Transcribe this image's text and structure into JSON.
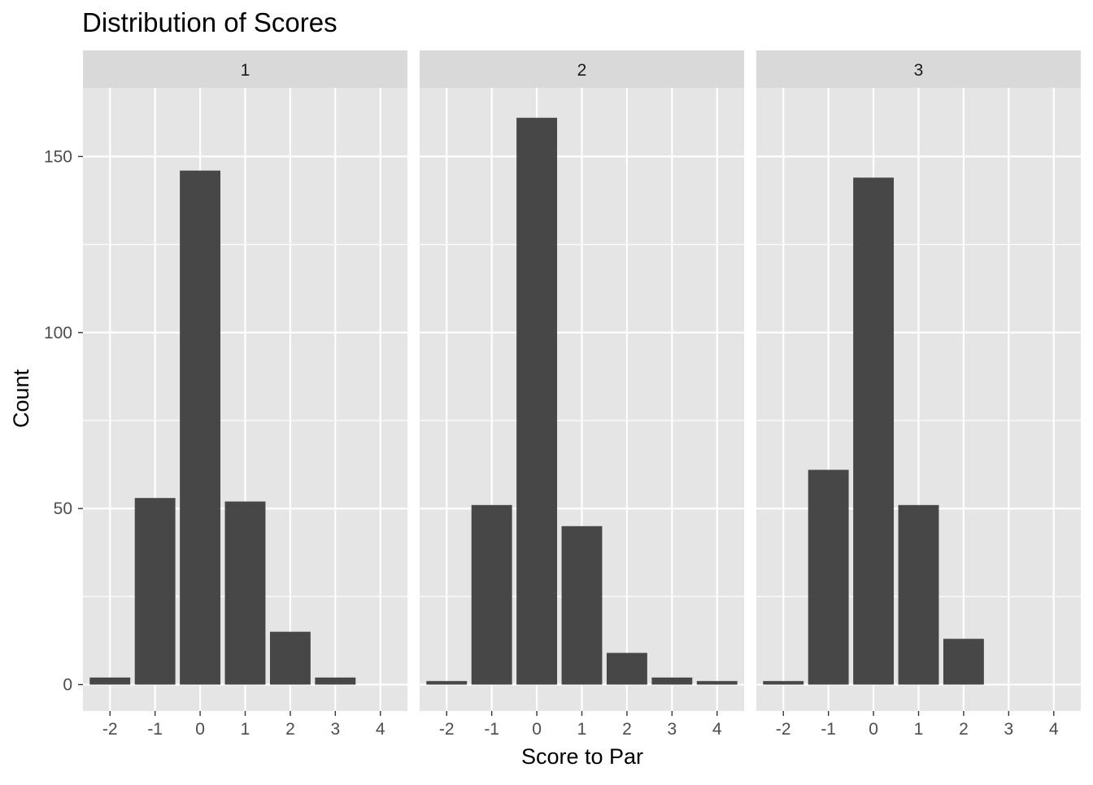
{
  "chart_data": {
    "type": "bar",
    "title": "Distribution of Scores",
    "xlabel": "Score to Par",
    "ylabel": "Count",
    "categories": [
      "-2",
      "-1",
      "0",
      "1",
      "2",
      "3",
      "4"
    ],
    "x_ticks": [
      "-2",
      "-1",
      "0",
      "1",
      "2",
      "3",
      "4"
    ],
    "y_ticks": [
      "0",
      "50",
      "100",
      "150"
    ],
    "ylim": [
      -7.5,
      169.5
    ],
    "grid": true,
    "facets": [
      {
        "label": "1",
        "values": [
          2,
          53,
          146,
          52,
          15,
          2,
          0
        ]
      },
      {
        "label": "2",
        "values": [
          1,
          51,
          161,
          45,
          9,
          2,
          1
        ]
      },
      {
        "label": "3",
        "values": [
          1,
          61,
          144,
          51,
          13,
          0,
          0
        ]
      }
    ],
    "colors": {
      "bar": "#474747",
      "panel_background": "#e5e5e5",
      "strip_background": "#d9d9d9",
      "grid": "#ffffff"
    }
  }
}
